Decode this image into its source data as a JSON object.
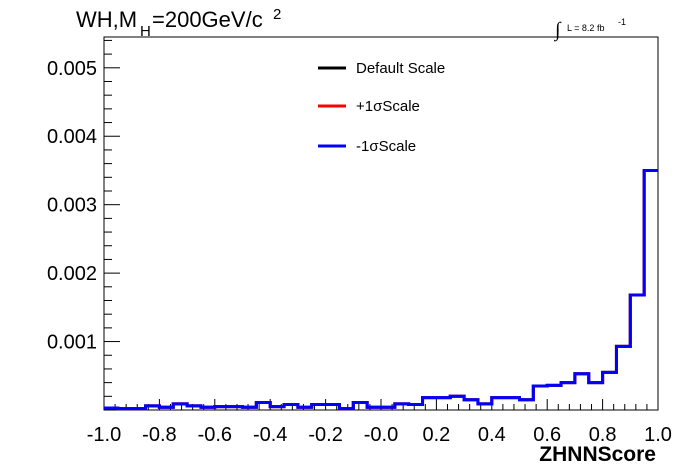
{
  "chart_data": {
    "type": "line",
    "title": {
      "prefix": "WH,M",
      "subscript": "H",
      "suffix": "=200GeV/c",
      "superscript": "2"
    },
    "luminosity": {
      "integral": "∫",
      "text": "L = 8.2 fb",
      "superscript": "-1"
    },
    "xlabel": "ZHNNScore",
    "ylabel": "",
    "xlim": [
      -1.0,
      1.0
    ],
    "ylim": [
      0,
      0.00545
    ],
    "x_ticks": [
      -1.0,
      -0.8,
      -0.6,
      -0.4,
      -0.2,
      0.0,
      0.2,
      0.4,
      0.6,
      0.8,
      1.0
    ],
    "x_tick_labels": [
      "-1.0",
      "-0.8",
      "-0.6",
      "-0.4",
      "-0.2",
      "-0.0",
      "0.2",
      "0.4",
      "0.6",
      "0.8",
      "1.0"
    ],
    "y_ticks": [
      0.001,
      0.002,
      0.003,
      0.004,
      0.005
    ],
    "y_tick_labels": [
      "0.001",
      "0.002",
      "0.003",
      "0.004",
      "0.005"
    ],
    "legend_position": "top-center",
    "bin_edges": [
      -1.0,
      -0.95,
      -0.9,
      -0.85,
      -0.8,
      -0.75,
      -0.7,
      -0.65,
      -0.6,
      -0.55,
      -0.5,
      -0.45,
      -0.4,
      -0.35,
      -0.3,
      -0.25,
      -0.2,
      -0.15,
      -0.1,
      -0.05,
      0.0,
      0.05,
      0.1,
      0.15,
      0.2,
      0.25,
      0.3,
      0.35,
      0.4,
      0.45,
      0.5,
      0.55,
      0.6,
      0.65,
      0.7,
      0.75,
      0.8,
      0.85,
      0.9,
      0.95,
      1.0
    ],
    "series": [
      {
        "name": "Default Scale",
        "color": "#000000",
        "values": [
          3e-05,
          2e-05,
          2e-05,
          6e-05,
          4e-05,
          9e-05,
          6e-05,
          4e-05,
          5e-05,
          5e-05,
          4e-05,
          0.00011,
          5e-05,
          8e-05,
          4e-05,
          8e-05,
          8e-05,
          2e-05,
          0.00011,
          4e-05,
          4e-05,
          9e-05,
          8e-05,
          0.00018,
          0.00018,
          0.0002,
          0.00015,
          9e-05,
          0.00018,
          0.00018,
          0.00015,
          0.00035,
          0.00036,
          0.0004,
          0.00053,
          0.0004,
          0.00055,
          0.00093,
          0.00168,
          0.0035
        ]
      },
      {
        "name": "+1σScale",
        "color": "#ff0000",
        "values": [
          3e-05,
          2e-05,
          2e-05,
          6e-05,
          4e-05,
          9e-05,
          6e-05,
          4e-05,
          5e-05,
          5e-05,
          4e-05,
          0.00011,
          5e-05,
          8e-05,
          4e-05,
          8e-05,
          8e-05,
          2e-05,
          0.00011,
          4e-05,
          4e-05,
          9e-05,
          8e-05,
          0.00018,
          0.00018,
          0.0002,
          0.00015,
          9e-05,
          0.00018,
          0.00018,
          0.00015,
          0.00035,
          0.00036,
          0.0004,
          0.00053,
          0.0004,
          0.00055,
          0.00093,
          0.00168,
          0.0035
        ]
      },
      {
        "name": "-1σScale",
        "color": "#0000ff",
        "values": [
          3e-05,
          2e-05,
          2e-05,
          6e-05,
          4e-05,
          9e-05,
          6e-05,
          4e-05,
          5e-05,
          5e-05,
          4e-05,
          0.00011,
          5e-05,
          8e-05,
          4e-05,
          8e-05,
          8e-05,
          2e-05,
          0.00011,
          4e-05,
          4e-05,
          9e-05,
          8e-05,
          0.00018,
          0.00018,
          0.0002,
          0.00015,
          9e-05,
          0.00018,
          0.00018,
          0.00015,
          0.00035,
          0.00036,
          0.0004,
          0.00053,
          0.0004,
          0.00055,
          0.00093,
          0.00168,
          0.0035
        ]
      }
    ]
  }
}
